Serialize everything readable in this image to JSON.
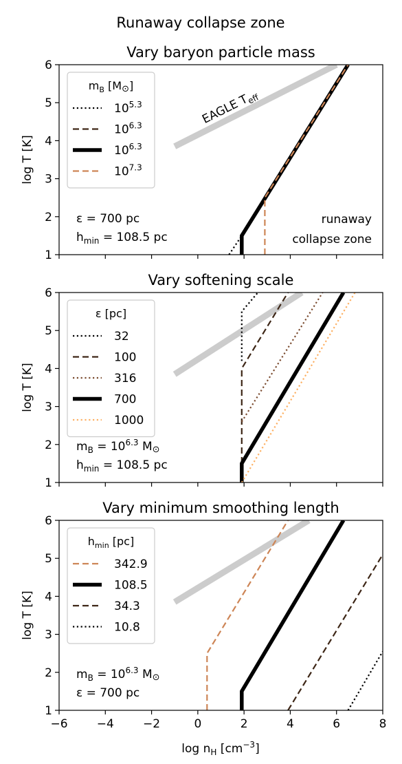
{
  "figure": {
    "suptitle": "Runaway collapse zone",
    "xlabel_main": "log n",
    "xlabel_sub": "H",
    "xlabel_unit_pre": " [cm",
    "xlabel_unit_sup": "−3",
    "xlabel_unit_post": "]",
    "ylabel": "log T [K]"
  },
  "colors": {
    "eagle": "#cccccc",
    "black": "#000000",
    "dark_brown": "#3d2616",
    "brown": "#7a4a2e",
    "orange_brown": "#cd8556",
    "light_orange": "#fdb063",
    "frame": "#000000"
  },
  "chart_data": [
    {
      "type": "line",
      "title": "Vary baryon particle mass",
      "xlim": [
        -6,
        8
      ],
      "ylim": [
        1,
        6
      ],
      "xticks": [
        -6,
        -4,
        -2,
        0,
        2,
        4,
        6,
        8
      ],
      "xticklabels": [
        "−6",
        "−4",
        "−2",
        "0",
        "2",
        "4",
        "6",
        "8"
      ],
      "yticks": [
        1,
        2,
        3,
        4,
        5,
        6
      ],
      "yticklabels": [
        "1",
        "2",
        "3",
        "4",
        "5",
        "6"
      ],
      "show_xticklabels": false,
      "eagle": {
        "x": [
          -1.0,
          6.0
        ],
        "y": [
          3.85,
          6.0
        ],
        "label": "EAGLE T",
        "label_sub": "eff"
      },
      "legend": {
        "title_main": "m",
        "title_sub": "B",
        "title_post": " [M",
        "title_sym": "⊙",
        "title_end": "]",
        "placement": "upper left"
      },
      "series": [
        {
          "legend_base": "10",
          "legend_exp": "5.3",
          "color": "#000000",
          "style": "dotted",
          "width": 2.2,
          "points": [
            [
              1.35,
              1.0
            ],
            [
              1.9,
              1.5
            ],
            [
              6.5,
              6.0
            ]
          ]
        },
        {
          "legend_base": "10",
          "legend_exp": "6.3",
          "color": "#3d2616",
          "style": "dashed",
          "width": 2.2,
          "points": [
            [
              1.9,
              1.0
            ],
            [
              1.9,
              1.5
            ],
            [
              6.5,
              6.0
            ]
          ]
        },
        {
          "legend_base": "10",
          "legend_exp": "6.3",
          "color": "#000000",
          "style": "solid",
          "width": 5.5,
          "points": [
            [
              1.9,
              1.0
            ],
            [
              1.9,
              1.5
            ],
            [
              6.5,
              6.0
            ]
          ]
        },
        {
          "legend_base": "10",
          "legend_exp": "7.3",
          "color": "#cd8556",
          "style": "dashed",
          "width": 2.2,
          "points": [
            [
              2.9,
              1.0
            ],
            [
              2.9,
              2.5
            ],
            [
              6.5,
              6.0
            ]
          ]
        }
      ],
      "annotations": {
        "left_line1_pre": "ε = 700 pc",
        "left_line2_main": "h",
        "left_line2_sub": "min",
        "left_line2_post": " = 108.5 pc",
        "right_line1": "runaway",
        "right_line2": "collapse zone"
      }
    },
    {
      "type": "line",
      "title": "Vary softening scale",
      "xlim": [
        -6,
        8
      ],
      "ylim": [
        1,
        6
      ],
      "xticks": [
        -6,
        -4,
        -2,
        0,
        2,
        4,
        6,
        8
      ],
      "xticklabels": [
        "−6",
        "−4",
        "−2",
        "0",
        "2",
        "4",
        "6",
        "8"
      ],
      "yticks": [
        1,
        2,
        3,
        4,
        5,
        6
      ],
      "yticklabels": [
        "1",
        "2",
        "3",
        "4",
        "5",
        "6"
      ],
      "show_xticklabels": false,
      "eagle": {
        "x": [
          -1.0,
          4.5
        ],
        "y": [
          3.85,
          6.0
        ]
      },
      "legend": {
        "title_main": "ε [pc]",
        "placement": "upper left"
      },
      "series": [
        {
          "name": "32",
          "color": "#000000",
          "style": "dotted",
          "width": 2.2,
          "points": [
            [
              1.9,
              4.2
            ],
            [
              1.9,
              5.5
            ],
            [
              2.6,
              6.0
            ]
          ]
        },
        {
          "name": "100",
          "color": "#3d2616",
          "style": "dashed",
          "width": 2.2,
          "points": [
            [
              1.9,
              1.0
            ],
            [
              1.9,
              4.0
            ],
            [
              3.9,
              6.0
            ]
          ]
        },
        {
          "name": "316",
          "color": "#7a4a2e",
          "style": "dotted",
          "width": 2.2,
          "points": [
            [
              1.9,
              2.6
            ],
            [
              5.4,
              6.0
            ]
          ]
        },
        {
          "name": "700",
          "color": "#000000",
          "style": "solid",
          "width": 5.5,
          "points": [
            [
              1.9,
              1.0
            ],
            [
              1.9,
              1.5
            ],
            [
              6.3,
              6.0
            ]
          ]
        },
        {
          "name": "1000",
          "color": "#fdb063",
          "style": "dotted",
          "width": 2.2,
          "points": [
            [
              1.9,
              1.0
            ],
            [
              6.8,
              6.0
            ]
          ]
        }
      ],
      "annotations": {
        "left_line1_pre": "m",
        "left_line1_sub": "B",
        "left_line1_mid": " = 10",
        "left_line1_sup": "6.3",
        "left_line1_post": " M",
        "left_line1_sym": "⊙",
        "left_line2_main": "h",
        "left_line2_sub": "min",
        "left_line2_post": " = 108.5 pc"
      }
    },
    {
      "type": "line",
      "title": "Vary minimum smoothing length",
      "xlim": [
        -6,
        8
      ],
      "ylim": [
        1,
        6
      ],
      "xticks": [
        -6,
        -4,
        -2,
        0,
        2,
        4,
        6,
        8
      ],
      "xticklabels": [
        "−6",
        "−4",
        "−2",
        "0",
        "2",
        "4",
        "6",
        "8"
      ],
      "yticks": [
        1,
        2,
        3,
        4,
        5,
        6
      ],
      "yticklabels": [
        "1",
        "2",
        "3",
        "4",
        "5",
        "6"
      ],
      "show_xticklabels": true,
      "eagle": {
        "x": [
          -1.0,
          4.8
        ],
        "y": [
          3.85,
          6.0
        ]
      },
      "legend": {
        "title_main": "h",
        "title_sub": "min",
        "title_post": " [pc]",
        "placement": "upper left"
      },
      "series": [
        {
          "name": "342.9",
          "color": "#cd8556",
          "style": "dashed",
          "width": 2.2,
          "points": [
            [
              0.4,
              1.0
            ],
            [
              0.4,
              2.5
            ],
            [
              3.9,
              6.0
            ]
          ]
        },
        {
          "name": "108.5",
          "color": "#000000",
          "style": "solid",
          "width": 5.5,
          "points": [
            [
              1.9,
              1.0
            ],
            [
              1.9,
              1.5
            ],
            [
              6.3,
              6.0
            ]
          ]
        },
        {
          "name": "34.3",
          "color": "#3d2616",
          "style": "dashed",
          "width": 2.2,
          "points": [
            [
              3.9,
              1.0
            ],
            [
              8.0,
              5.1
            ]
          ]
        },
        {
          "name": "10.8",
          "color": "#000000",
          "style": "dotted",
          "width": 2.2,
          "points": [
            [
              6.5,
              1.0
            ],
            [
              8.0,
              2.55
            ]
          ]
        }
      ],
      "annotations": {
        "left_line1_pre": "m",
        "left_line1_sub": "B",
        "left_line1_mid": " = 10",
        "left_line1_sup": "6.3",
        "left_line1_post": " M",
        "left_line1_sym": "⊙",
        "left_line2_pre": "ε = 700 pc"
      }
    }
  ]
}
